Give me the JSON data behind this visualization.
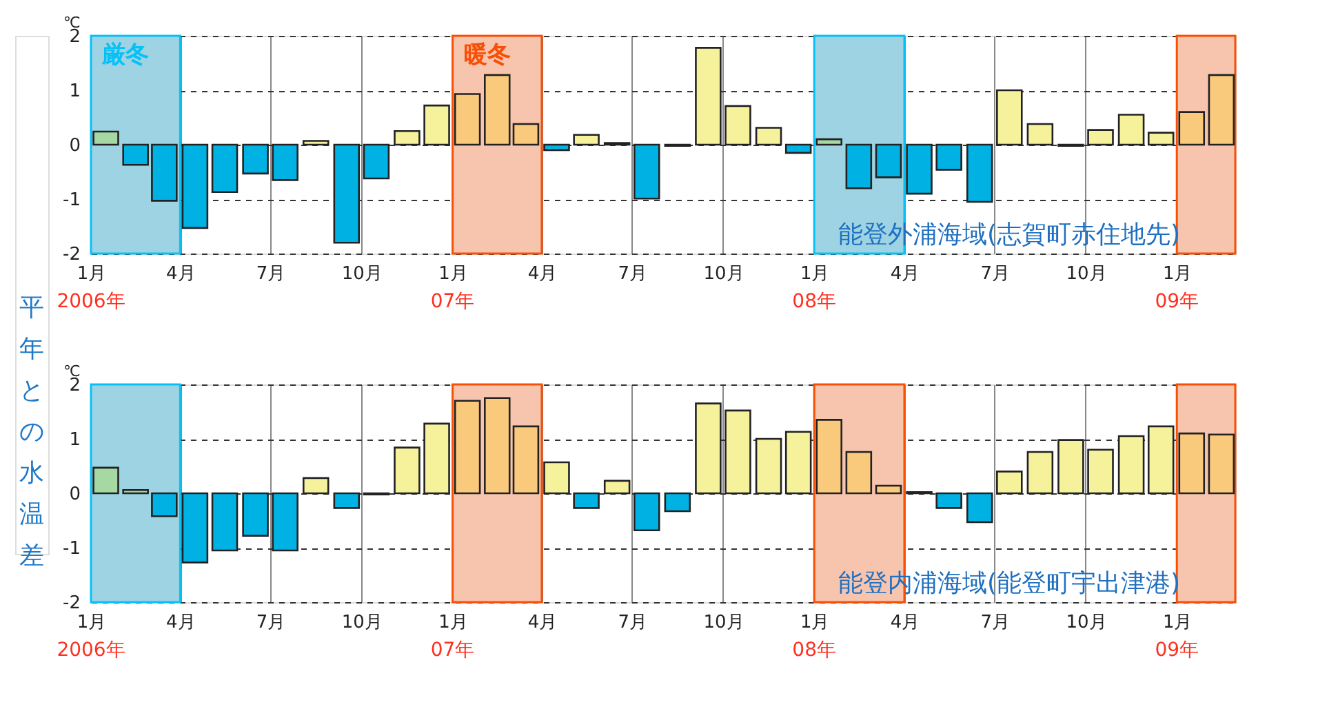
{
  "chart_data": [
    {
      "type": "bar",
      "ylabel": "平年との水温差",
      "x": [
        "2006-01-16",
        "2006-02-15",
        "2006-03-16",
        "2006-04-16",
        "2006-05-16",
        "2006-06-16",
        "2006-07-16",
        "2006-08-16",
        "2006-09-16",
        "2006-10-16",
        "2006-11-16",
        "2006-12-16",
        "2007-01-16",
        "2007-02-15",
        "2007-03-16",
        "2007-04-16",
        "2007-05-16",
        "2007-06-16",
        "2007-07-16",
        "2007-08-16",
        "2007-09-16",
        "2007-10-16",
        "2007-11-16",
        "2007-12-16",
        "2008-01-16",
        "2008-02-15",
        "2008-03-16",
        "2008-04-16",
        "2008-05-16",
        "2008-06-16",
        "2008-07-16",
        "2008-08-16",
        "2008-09-16",
        "2008-10-16",
        "2008-11-16",
        "2008-12-16",
        "2009-01-16",
        "2009-02-15"
      ],
      "values": [
        0.24,
        -0.37,
        -1.03,
        -1.53,
        -0.87,
        -0.53,
        -0.65,
        0.07,
        -1.8,
        -0.62,
        0.25,
        0.72,
        0.93,
        1.28,
        0.38,
        -0.1,
        0.18,
        0.03,
        -0.99,
        -0.02,
        1.78,
        0.71,
        0.31,
        -0.15,
        0.1,
        -0.8,
        -0.6,
        -0.9,
        -0.46,
        -1.05,
        1.0,
        0.38,
        -0.02,
        0.27,
        0.55,
        0.22,
        0.6,
        1.28
      ],
      "colors": [
        "#a6d8a4",
        "#00b2e3",
        "#00b2e3",
        "#00b2e3",
        "#00b2e3",
        "#00b2e3",
        "#00b2e3",
        "#f6f29c",
        "#00b2e3",
        "#00b2e3",
        "#f6f29c",
        "#f6f29c",
        "#f9c97c",
        "#f9c97c",
        "#f9c97c",
        "#00b2e3",
        "#f6f29c",
        "#f6f29c",
        "#00b2e3",
        "#00b2e3",
        "#f6f29c",
        "#f6f29c",
        "#f6f29c",
        "#00b2e3",
        "#a6d8a4",
        "#00b2e3",
        "#00b2e3",
        "#00b2e3",
        "#00b2e3",
        "#00b2e3",
        "#f6f29c",
        "#f6f29c",
        "#00b2e3",
        "#f6f29c",
        "#f6f29c",
        "#f6f29c",
        "#f9c97c",
        "#f9c97c"
      ],
      "xlim": [
        "2006-01",
        "2009-03"
      ],
      "xticks": [
        {
          "value": "2006-01",
          "label": "1月"
        },
        {
          "value": "2006-04",
          "label": "4月"
        },
        {
          "value": "2006-07",
          "label": "7月"
        },
        {
          "value": "2006-10",
          "label": "10月"
        },
        {
          "value": "2007-01",
          "label": "1月"
        },
        {
          "value": "2007-04",
          "label": "4月"
        },
        {
          "value": "2007-07",
          "label": "7月"
        },
        {
          "value": "2007-10",
          "label": "10月"
        },
        {
          "value": "2008-01",
          "label": "1月"
        },
        {
          "value": "2008-04",
          "label": "4月"
        },
        {
          "value": "2008-07",
          "label": "7月"
        },
        {
          "value": "2008-10",
          "label": "10月"
        },
        {
          "value": "2009-01",
          "label": "1月"
        }
      ],
      "ylim": [
        -2,
        2
      ],
      "yticks": [
        -2,
        -1,
        0,
        1,
        2
      ],
      "grid": true,
      "bands": [
        {
          "axis": "x",
          "from": "2006-01",
          "to": "2006-04",
          "label": "厳冬",
          "color": "#9dd3e3"
        },
        {
          "axis": "x",
          "from": "2007-01",
          "to": "2007-04",
          "label": "暖冬",
          "color": "#f7c4ae"
        },
        {
          "axis": "x",
          "from": "2008-01",
          "to": "2008-04",
          "label": null,
          "color": "#9dd3e3"
        },
        {
          "axis": "x",
          "from": "2009-01",
          "to": "2009-03",
          "label": null,
          "color": "#f7c4ae"
        }
      ],
      "annotations": [
        "℃",
        "能登外浦海域(志賀町赤住地先)",
        "2006年",
        "07年",
        "08年",
        "09年"
      ]
    },
    {
      "type": "bar",
      "x": [
        "2006-01-16",
        "2006-02-15",
        "2006-03-16",
        "2006-04-16",
        "2006-05-16",
        "2006-06-16",
        "2006-07-16",
        "2006-08-16",
        "2006-09-16",
        "2006-10-16",
        "2006-11-16",
        "2006-12-16",
        "2007-01-16",
        "2007-02-15",
        "2007-03-16",
        "2007-04-16",
        "2007-05-16",
        "2007-06-16",
        "2007-07-16",
        "2007-08-16",
        "2007-09-16",
        "2007-10-16",
        "2007-11-16",
        "2007-12-16",
        "2008-01-16",
        "2008-02-15",
        "2008-03-16",
        "2008-04-16",
        "2008-05-16",
        "2008-06-16",
        "2008-07-16",
        "2008-08-16",
        "2008-09-16",
        "2008-10-16",
        "2008-11-16",
        "2008-12-16",
        "2009-01-16",
        "2009-02-15"
      ],
      "values": [
        0.47,
        0.06,
        -0.42,
        -1.27,
        -1.05,
        -0.78,
        -1.05,
        0.28,
        -0.27,
        -0.02,
        0.84,
        1.28,
        1.7,
        1.75,
        1.23,
        0.57,
        -0.27,
        0.23,
        -0.68,
        -0.33,
        1.65,
        1.52,
        1.0,
        1.13,
        1.35,
        0.76,
        0.14,
        0.02,
        -0.27,
        -0.53,
        0.4,
        0.76,
        0.98,
        0.8,
        1.05,
        1.23,
        1.1,
        1.08
      ],
      "colors": [
        "#a6d8a4",
        "#a6d8a4",
        "#00b2e3",
        "#00b2e3",
        "#00b2e3",
        "#00b2e3",
        "#00b2e3",
        "#f6f29c",
        "#00b2e3",
        "#00b2e3",
        "#f6f29c",
        "#f6f29c",
        "#f9c97c",
        "#f9c97c",
        "#f9c97c",
        "#f6f29c",
        "#00b2e3",
        "#f6f29c",
        "#00b2e3",
        "#00b2e3",
        "#f6f29c",
        "#f6f29c",
        "#f6f29c",
        "#f6f29c",
        "#f9c97c",
        "#f9c97c",
        "#f9c97c",
        "#f6f29c",
        "#00b2e3",
        "#00b2e3",
        "#f6f29c",
        "#f6f29c",
        "#f6f29c",
        "#f6f29c",
        "#f6f29c",
        "#f6f29c",
        "#f9c97c",
        "#f9c97c"
      ],
      "xlim": [
        "2006-01",
        "2009-03"
      ],
      "xticks": [
        {
          "value": "2006-01",
          "label": "1月"
        },
        {
          "value": "2006-04",
          "label": "4月"
        },
        {
          "value": "2006-07",
          "label": "7月"
        },
        {
          "value": "2006-10",
          "label": "10月"
        },
        {
          "value": "2007-01",
          "label": "1月"
        },
        {
          "value": "2007-04",
          "label": "4月"
        },
        {
          "value": "2007-07",
          "label": "7月"
        },
        {
          "value": "2007-10",
          "label": "10月"
        },
        {
          "value": "2008-01",
          "label": "1月"
        },
        {
          "value": "2008-04",
          "label": "4月"
        },
        {
          "value": "2008-07",
          "label": "7月"
        },
        {
          "value": "2008-10",
          "label": "10月"
        },
        {
          "value": "2009-01",
          "label": "1月"
        }
      ],
      "ylim": [
        -2,
        2
      ],
      "yticks": [
        -2,
        -1,
        0,
        1,
        2
      ],
      "grid": true,
      "bands": [
        {
          "axis": "x",
          "from": "2006-01",
          "to": "2006-04",
          "label": null,
          "color": "#9dd3e3"
        },
        {
          "axis": "x",
          "from": "2007-01",
          "to": "2007-04",
          "label": null,
          "color": "#f7c4ae"
        },
        {
          "axis": "x",
          "from": "2008-01",
          "to": "2008-04",
          "label": null,
          "color": "#f7c4ae"
        },
        {
          "axis": "x",
          "from": "2009-01",
          "to": "2009-03",
          "label": null,
          "color": "#f7c4ae"
        }
      ],
      "annotations": [
        "℃",
        "能登内浦海域(能登町宇出津港)",
        "2006年",
        "07年",
        "08年",
        "09年"
      ]
    }
  ]
}
